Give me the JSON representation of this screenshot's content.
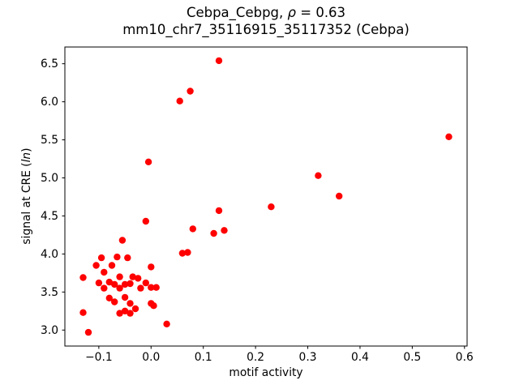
{
  "title": {
    "line1_prefix": "Cebpa_Cebpg, ",
    "line1_rho": "ρ",
    "line1_suffix": " = 0.63",
    "line2": "mm10_chr7_35116915_35117352 (Cebpa)"
  },
  "axes": {
    "xlabel": "motif activity",
    "ylabel_prefix": "signal at CRE (",
    "ylabel_italic": "ln",
    "ylabel_suffix": ")"
  },
  "chart_data": {
    "type": "scatter",
    "title": "Cebpa_Cebpg, ρ = 0.63\nmm10_chr7_35116915_35117352 (Cebpa)",
    "xlabel": "motif activity",
    "ylabel": "signal at CRE (ln)",
    "xlim": [
      -0.165,
      0.605
    ],
    "ylim": [
      2.79,
      6.72
    ],
    "xticks": [
      -0.1,
      0.0,
      0.1,
      0.2,
      0.3,
      0.4,
      0.5,
      0.6
    ],
    "yticks": [
      3.0,
      3.5,
      4.0,
      4.5,
      5.0,
      5.5,
      6.0,
      6.5
    ],
    "grid": false,
    "legend": "none",
    "marker_color": "#ff0000",
    "points": [
      [
        -0.13,
        3.69
      ],
      [
        -0.13,
        3.23
      ],
      [
        -0.12,
        2.97
      ],
      [
        -0.105,
        3.85
      ],
      [
        -0.1,
        3.62
      ],
      [
        -0.095,
        3.95
      ],
      [
        -0.09,
        3.55
      ],
      [
        -0.09,
        3.76
      ],
      [
        -0.08,
        3.42
      ],
      [
        -0.08,
        3.63
      ],
      [
        -0.075,
        3.85
      ],
      [
        -0.07,
        3.6
      ],
      [
        -0.07,
        3.37
      ],
      [
        -0.065,
        3.96
      ],
      [
        -0.06,
        3.7
      ],
      [
        -0.06,
        3.55
      ],
      [
        -0.06,
        3.22
      ],
      [
        -0.055,
        4.18
      ],
      [
        -0.05,
        3.6
      ],
      [
        -0.05,
        3.43
      ],
      [
        -0.05,
        3.25
      ],
      [
        -0.045,
        3.95
      ],
      [
        -0.04,
        3.61
      ],
      [
        -0.04,
        3.35
      ],
      [
        -0.04,
        3.22
      ],
      [
        -0.035,
        3.7
      ],
      [
        -0.03,
        3.28
      ],
      [
        -0.025,
        3.68
      ],
      [
        -0.02,
        3.55
      ],
      [
        -0.01,
        4.43
      ],
      [
        -0.01,
        3.62
      ],
      [
        -0.005,
        5.21
      ],
      [
        0.0,
        3.83
      ],
      [
        0.0,
        3.56
      ],
      [
        0.0,
        3.35
      ],
      [
        0.005,
        3.32
      ],
      [
        0.01,
        3.56
      ],
      [
        0.03,
        3.08
      ],
      [
        0.055,
        6.01
      ],
      [
        0.06,
        4.01
      ],
      [
        0.07,
        4.02
      ],
      [
        0.075,
        6.14
      ],
      [
        0.08,
        4.33
      ],
      [
        0.12,
        4.27
      ],
      [
        0.13,
        6.54
      ],
      [
        0.13,
        4.57
      ],
      [
        0.14,
        4.31
      ],
      [
        0.23,
        4.62
      ],
      [
        0.32,
        5.03
      ],
      [
        0.36,
        4.76
      ],
      [
        0.57,
        5.54
      ]
    ]
  }
}
